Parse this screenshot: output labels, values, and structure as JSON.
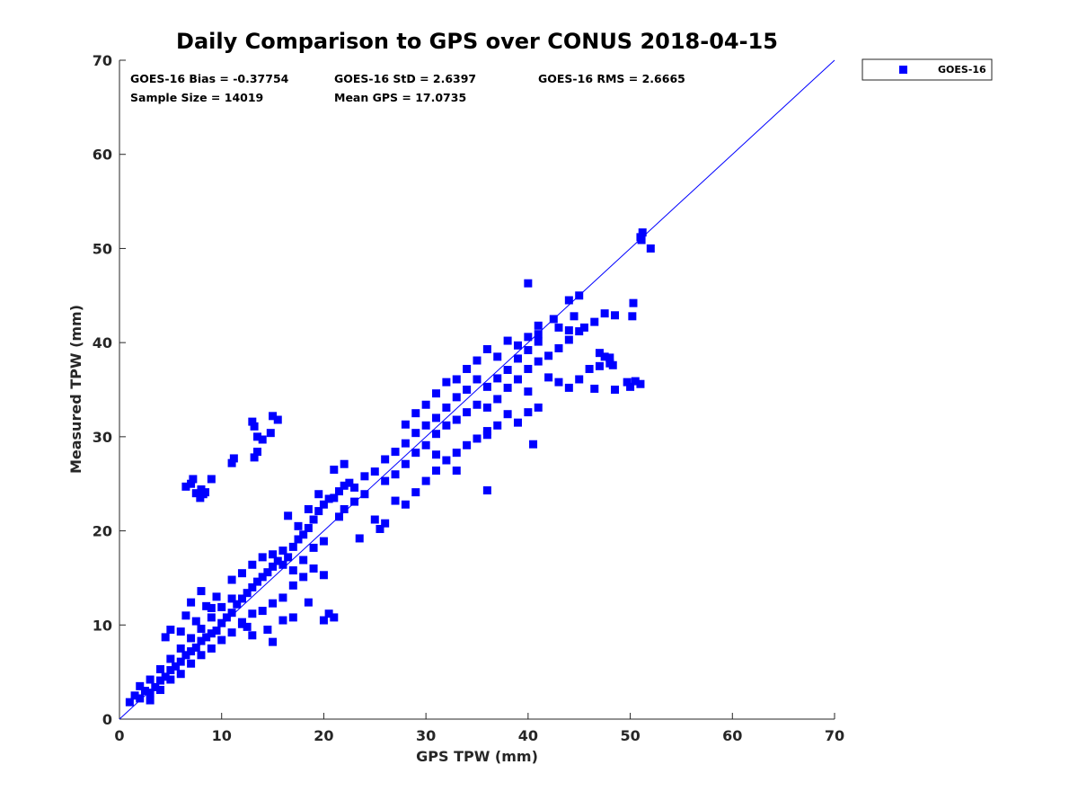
{
  "chart_data": {
    "type": "scatter",
    "title": "Daily Comparison to GPS over CONUS 2018-04-15",
    "xlabel": "GPS TPW (mm)",
    "ylabel": "Measured TPW (mm)",
    "xlim": [
      0,
      70
    ],
    "ylim": [
      0,
      70
    ],
    "xticks": [
      "0",
      "10",
      "20",
      "30",
      "40",
      "50",
      "60",
      "70"
    ],
    "yticks": [
      "0",
      "10",
      "20",
      "30",
      "40",
      "50",
      "60",
      "70"
    ],
    "grid": false,
    "legend_position": "outside-top-right",
    "color": "#0000ff",
    "reference_line": {
      "name": "1:1 line",
      "x": [
        0,
        70
      ],
      "y": [
        0,
        70
      ]
    },
    "stats": {
      "bias": "GOES-16 Bias = -0.37754",
      "std": "GOES-16 StD = 2.6397",
      "rms": "GOES-16 RMS = 2.6665",
      "sample": "Sample Size = 14019",
      "mean": "Mean GPS = 17.0735"
    },
    "series": [
      {
        "name": "GOES-16",
        "marker": "square",
        "points": [
          [
            1,
            1.8
          ],
          [
            1.5,
            2.5
          ],
          [
            2,
            2.2
          ],
          [
            2.5,
            3
          ],
          [
            3,
            2.8
          ],
          [
            3.5,
            3.4
          ],
          [
            4,
            4.1
          ],
          [
            4.5,
            4.5
          ],
          [
            5,
            5.2
          ],
          [
            5.5,
            5.6
          ],
          [
            6,
            6.1
          ],
          [
            6.5,
            6.8
          ],
          [
            7,
            7.2
          ],
          [
            7.5,
            7.6
          ],
          [
            8,
            8.3
          ],
          [
            8.5,
            8.7
          ],
          [
            9,
            9.1
          ],
          [
            9.5,
            9.4
          ],
          [
            10,
            10.2
          ],
          [
            10.5,
            10.8
          ],
          [
            2,
            3.5
          ],
          [
            3,
            4.2
          ],
          [
            4,
            5.3
          ],
          [
            5,
            6.4
          ],
          [
            6,
            7.5
          ],
          [
            7,
            8.6
          ],
          [
            8,
            9.6
          ],
          [
            9,
            10.8
          ],
          [
            10,
            11.9
          ],
          [
            11,
            12.8
          ],
          [
            3,
            2
          ],
          [
            4,
            3.1
          ],
          [
            5,
            4.2
          ],
          [
            6,
            4.8
          ],
          [
            7,
            5.9
          ],
          [
            8,
            6.8
          ],
          [
            9,
            7.5
          ],
          [
            10,
            8.4
          ],
          [
            11,
            9.2
          ],
          [
            12,
            10.1
          ],
          [
            4.5,
            8.7
          ],
          [
            5,
            9.5
          ],
          [
            6.5,
            11
          ],
          [
            7,
            12.4
          ],
          [
            8,
            13.6
          ],
          [
            9,
            11.8
          ],
          [
            6,
            9.3
          ],
          [
            7.5,
            10.4
          ],
          [
            8.5,
            12
          ],
          [
            9.5,
            13
          ],
          [
            11,
            11.3
          ],
          [
            11.5,
            12.2
          ],
          [
            12,
            12.8
          ],
          [
            12.5,
            13.4
          ],
          [
            13,
            14
          ],
          [
            13.5,
            14.6
          ],
          [
            14,
            15.1
          ],
          [
            14.5,
            15.6
          ],
          [
            15,
            16.2
          ],
          [
            15.5,
            16.8
          ],
          [
            11,
            14.8
          ],
          [
            12,
            15.5
          ],
          [
            13,
            16.4
          ],
          [
            14,
            17.2
          ],
          [
            15,
            17.5
          ],
          [
            16,
            17.9
          ],
          [
            12,
            10.3
          ],
          [
            13,
            11.2
          ],
          [
            14,
            11.5
          ],
          [
            15,
            12.3
          ],
          [
            16,
            12.9
          ],
          [
            17,
            14.2
          ],
          [
            18,
            15.1
          ],
          [
            14.5,
            9.5
          ],
          [
            16,
            10.5
          ],
          [
            17,
            10.8
          ],
          [
            15,
            8.2
          ],
          [
            13,
            8.9
          ],
          [
            12.5,
            9.8
          ],
          [
            18.5,
            12.4
          ],
          [
            16,
            16.4
          ],
          [
            16.5,
            17.2
          ],
          [
            17,
            18.3
          ],
          [
            17.5,
            19.1
          ],
          [
            18,
            19.6
          ],
          [
            18.5,
            20.3
          ],
          [
            19,
            21.2
          ],
          [
            19.5,
            22.1
          ],
          [
            20,
            22.8
          ],
          [
            20.5,
            23.4
          ],
          [
            17,
            15.8
          ],
          [
            18,
            16.9
          ],
          [
            19,
            18.2
          ],
          [
            20,
            18.9
          ],
          [
            19,
            16
          ],
          [
            20,
            15.3
          ],
          [
            17.5,
            20.5
          ],
          [
            18.5,
            22.3
          ],
          [
            16.5,
            21.6
          ],
          [
            19.5,
            23.9
          ],
          [
            21,
            23.5
          ],
          [
            21.5,
            24.2
          ],
          [
            22,
            24.8
          ],
          [
            22.5,
            25.1
          ],
          [
            23,
            24.6
          ],
          [
            24,
            25.8
          ],
          [
            25,
            26.3
          ],
          [
            22,
            22.3
          ],
          [
            23,
            23.1
          ],
          [
            24,
            23.9
          ],
          [
            21,
            26.5
          ],
          [
            22,
            27.1
          ],
          [
            23.5,
            19.2
          ],
          [
            21,
            10.8
          ],
          [
            20.5,
            11.2
          ],
          [
            20,
            10.5
          ],
          [
            25,
            21.2
          ],
          [
            26,
            20.8
          ],
          [
            25.5,
            20.2
          ],
          [
            21.5,
            21.5
          ],
          [
            26,
            27.6
          ],
          [
            27,
            28.4
          ],
          [
            28,
            29.3
          ],
          [
            29,
            30.4
          ],
          [
            30,
            31.2
          ],
          [
            31,
            32
          ],
          [
            32,
            33.1
          ],
          [
            33,
            34.2
          ],
          [
            34,
            35
          ],
          [
            35,
            36.1
          ],
          [
            26,
            25.3
          ],
          [
            27,
            26
          ],
          [
            28,
            27.1
          ],
          [
            29,
            28.3
          ],
          [
            30,
            29.1
          ],
          [
            31,
            30.3
          ],
          [
            32,
            31.2
          ],
          [
            33,
            31.8
          ],
          [
            34,
            32.6
          ],
          [
            35,
            33.4
          ],
          [
            27,
            23.2
          ],
          [
            28,
            22.8
          ],
          [
            29,
            24.1
          ],
          [
            30,
            25.3
          ],
          [
            31,
            26.4
          ],
          [
            32,
            27.5
          ],
          [
            33,
            28.3
          ],
          [
            34,
            29.1
          ],
          [
            35,
            29.8
          ],
          [
            36,
            30.6
          ],
          [
            28,
            31.3
          ],
          [
            29,
            32.5
          ],
          [
            30,
            33.4
          ],
          [
            31,
            34.6
          ],
          [
            32,
            35.8
          ],
          [
            33,
            36.1
          ],
          [
            34,
            37.2
          ],
          [
            35,
            38.1
          ],
          [
            36,
            39.3
          ],
          [
            37,
            38.5
          ],
          [
            36,
            35.3
          ],
          [
            37,
            36.2
          ],
          [
            38,
            37.1
          ],
          [
            39,
            38.3
          ],
          [
            40,
            39.2
          ],
          [
            41,
            40.1
          ],
          [
            36,
            33.1
          ],
          [
            37,
            34
          ],
          [
            38,
            35.2
          ],
          [
            39,
            36.1
          ],
          [
            40,
            37.2
          ],
          [
            41,
            38
          ],
          [
            42,
            38.6
          ],
          [
            43,
            39.4
          ],
          [
            44,
            40.3
          ],
          [
            45,
            41.2
          ],
          [
            38,
            40.2
          ],
          [
            39,
            39.7
          ],
          [
            40,
            40.6
          ],
          [
            41,
            40.9
          ],
          [
            42,
            36.3
          ],
          [
            43,
            35.8
          ],
          [
            44,
            35.2
          ],
          [
            45,
            36.1
          ],
          [
            46,
            37.2
          ],
          [
            47,
            37.5
          ],
          [
            48,
            37.8
          ],
          [
            46.5,
            35.1
          ],
          [
            47.5,
            38.5
          ],
          [
            40,
            34.8
          ],
          [
            36,
            30.2
          ],
          [
            37,
            31.2
          ],
          [
            38,
            32.4
          ],
          [
            39,
            31.5
          ],
          [
            40,
            32.6
          ],
          [
            41,
            33.1
          ],
          [
            40.5,
            29.2
          ],
          [
            36,
            24.3
          ],
          [
            33,
            26.4
          ],
          [
            31,
            28.1
          ],
          [
            40,
            46.3
          ],
          [
            44,
            44.5
          ],
          [
            45,
            45
          ],
          [
            44.5,
            42.8
          ],
          [
            45.5,
            41.6
          ],
          [
            46.5,
            42.2
          ],
          [
            47.5,
            43.1
          ],
          [
            48.5,
            42.9
          ],
          [
            43,
            41.6
          ],
          [
            44,
            41.3
          ],
          [
            42.5,
            42.5
          ],
          [
            41,
            41.8
          ],
          [
            47,
            38.9
          ],
          [
            48,
            38.4
          ],
          [
            48.3,
            37.6
          ],
          [
            49.7,
            35.8
          ],
          [
            50,
            35.3
          ],
          [
            50.5,
            35.9
          ],
          [
            51,
            35.6
          ],
          [
            50.3,
            44.2
          ],
          [
            50.2,
            42.8
          ],
          [
            48.5,
            35
          ],
          [
            51,
            51.2
          ],
          [
            51.2,
            51.7
          ],
          [
            52,
            50
          ],
          [
            51.1,
            50.9
          ],
          [
            13,
            31.6
          ],
          [
            13.2,
            31.1
          ],
          [
            15,
            32.2
          ],
          [
            15.5,
            31.8
          ],
          [
            14.8,
            30.4
          ],
          [
            13.5,
            30
          ],
          [
            14,
            29.7
          ],
          [
            13.2,
            27.8
          ],
          [
            13.5,
            28.4
          ],
          [
            11,
            27.2
          ],
          [
            11.2,
            27.7
          ],
          [
            7,
            25
          ],
          [
            6.5,
            24.7
          ],
          [
            7.2,
            25.5
          ],
          [
            8,
            24.4
          ],
          [
            8.2,
            23.9
          ],
          [
            7.9,
            23.5
          ],
          [
            8.4,
            24.1
          ],
          [
            9,
            25.5
          ],
          [
            7.5,
            24
          ]
        ]
      }
    ]
  }
}
